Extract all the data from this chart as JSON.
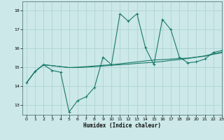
{
  "xlabel": "Humidex (Indice chaleur)",
  "background_color": "#cce8e8",
  "grid_color": "#b0d4d4",
  "line_color": "#1a7a6a",
  "xlim": [
    -0.5,
    23
  ],
  "ylim": [
    12.5,
    18.5
  ],
  "yticks": [
    13,
    14,
    15,
    16,
    17,
    18
  ],
  "xticks": [
    0,
    1,
    2,
    3,
    4,
    5,
    6,
    7,
    8,
    9,
    10,
    11,
    12,
    13,
    14,
    15,
    16,
    17,
    18,
    19,
    20,
    21,
    22,
    23
  ],
  "series1_x": [
    0,
    1,
    2,
    3,
    4,
    5,
    6,
    7,
    8,
    9,
    10,
    11,
    12,
    13,
    14,
    15,
    16,
    17,
    18,
    19,
    20,
    21,
    22,
    23
  ],
  "series1_y": [
    14.2,
    14.8,
    15.15,
    14.85,
    14.75,
    12.65,
    13.25,
    13.45,
    13.95,
    15.55,
    15.15,
    17.85,
    17.45,
    17.85,
    16.05,
    15.15,
    17.55,
    17.0,
    15.55,
    15.25,
    15.3,
    15.45,
    15.8,
    15.9
  ],
  "series2_x": [
    0,
    1,
    2,
    3,
    4,
    5,
    6,
    7,
    8,
    9,
    10,
    11,
    12,
    13,
    14,
    15,
    16,
    17,
    18,
    19,
    20,
    21,
    22,
    23
  ],
  "series2_y": [
    14.2,
    14.8,
    15.15,
    15.1,
    15.05,
    15.0,
    15.0,
    15.02,
    15.05,
    15.08,
    15.12,
    15.15,
    15.18,
    15.22,
    15.25,
    15.28,
    15.32,
    15.38,
    15.42,
    15.48,
    15.55,
    15.6,
    15.7,
    15.78
  ],
  "series3_x": [
    0,
    1,
    2,
    3,
    4,
    5,
    6,
    7,
    8,
    9,
    10,
    11,
    12,
    13,
    14,
    15,
    16,
    17,
    18,
    19,
    20,
    21,
    22,
    23
  ],
  "series3_y": [
    14.2,
    14.8,
    15.15,
    15.1,
    15.05,
    15.0,
    15.02,
    15.05,
    15.08,
    15.12,
    15.15,
    15.2,
    15.25,
    15.3,
    15.35,
    15.4,
    15.42,
    15.45,
    15.48,
    15.5,
    15.55,
    15.62,
    15.72,
    15.82
  ]
}
